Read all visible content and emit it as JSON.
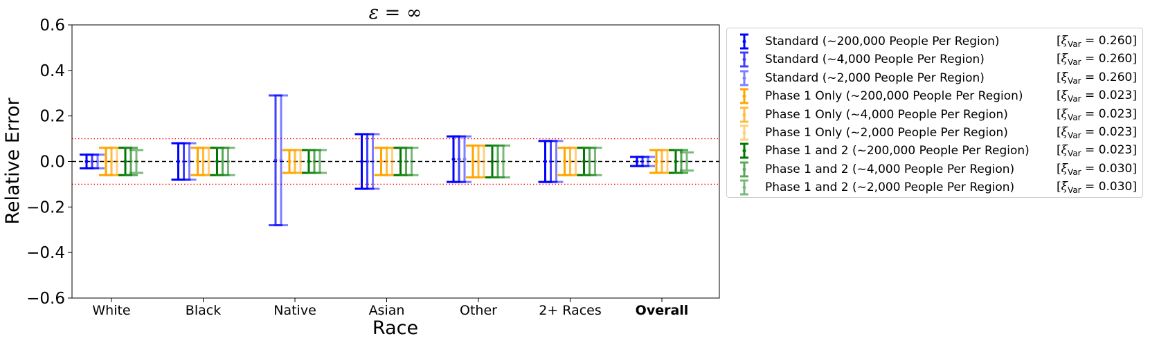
{
  "chart_data": {
    "type": "errorbar",
    "title": "ε = ∞",
    "xlabel": "Race",
    "ylabel": "Relative Error",
    "ylim": [
      -0.6,
      0.6
    ],
    "yticks": [
      -0.6,
      -0.4,
      -0.2,
      0.0,
      0.2,
      0.4,
      0.6
    ],
    "ytick_labels": [
      "−0.6",
      "−0.4",
      "−0.2",
      "0.0",
      "0.2",
      "0.4",
      "0.6"
    ],
    "categories": [
      "White",
      "Black",
      "Native",
      "Asian",
      "Other",
      "2+ Races",
      "Overall"
    ],
    "bold_categories": [
      "Overall"
    ],
    "reference_lines": [
      {
        "y": 0.0,
        "style": "dashed",
        "color": "#000000"
      },
      {
        "y": 0.1,
        "style": "dotted",
        "color": "#ff0000"
      },
      {
        "y": -0.1,
        "style": "dotted",
        "color": "#ff0000"
      }
    ],
    "series": [
      {
        "name": "Standard (~200,000 People Per Region)",
        "xi": "0.260",
        "color": "#0000ff",
        "opacity": 1.0,
        "low": [
          -0.03,
          -0.08,
          null,
          -0.12,
          -0.09,
          -0.09,
          -0.02
        ],
        "high": [
          0.03,
          0.08,
          null,
          0.12,
          0.11,
          0.09,
          0.02
        ]
      },
      {
        "name": "Standard (~4,000 People Per Region)",
        "xi": "0.260",
        "color": "#0000ff",
        "opacity": 0.75,
        "low": [
          -0.03,
          -0.08,
          -0.28,
          -0.12,
          -0.09,
          -0.09,
          -0.02
        ],
        "high": [
          0.03,
          0.08,
          0.29,
          0.12,
          0.11,
          0.09,
          0.02
        ]
      },
      {
        "name": "Standard (~2,000 People Per Region)",
        "xi": "0.260",
        "color": "#0000ff",
        "opacity": 0.5,
        "low": [
          -0.03,
          -0.08,
          -0.28,
          -0.12,
          -0.09,
          -0.09,
          -0.02
        ],
        "high": [
          0.03,
          0.08,
          0.29,
          0.12,
          0.11,
          0.09,
          0.02
        ]
      },
      {
        "name": "Phase 1 Only (~200,000 People Per Region)",
        "xi": "0.023",
        "color": "#ffa500",
        "opacity": 1.0,
        "low": [
          -0.06,
          -0.06,
          -0.05,
          -0.06,
          -0.07,
          -0.06,
          -0.05
        ],
        "high": [
          0.06,
          0.06,
          0.05,
          0.06,
          0.07,
          0.06,
          0.05
        ]
      },
      {
        "name": "Phase 1 Only (~4,000 People Per Region)",
        "xi": "0.023",
        "color": "#ffa500",
        "opacity": 0.75,
        "low": [
          -0.06,
          -0.06,
          -0.05,
          -0.06,
          -0.07,
          -0.06,
          -0.05
        ],
        "high": [
          0.06,
          0.06,
          0.05,
          0.06,
          0.07,
          0.06,
          0.05
        ]
      },
      {
        "name": "Phase 1 Only (~2,000 People Per Region)",
        "xi": "0.023",
        "color": "#ffa500",
        "opacity": 0.5,
        "low": [
          -0.06,
          -0.06,
          -0.05,
          -0.06,
          -0.07,
          -0.06,
          -0.05
        ],
        "high": [
          0.06,
          0.06,
          0.05,
          0.06,
          0.07,
          0.06,
          0.05
        ]
      },
      {
        "name": "Phase 1 and 2 (~200,000 People Per Region)",
        "xi": "0.023",
        "color": "#007700",
        "opacity": 1.0,
        "low": [
          -0.06,
          -0.06,
          -0.05,
          -0.06,
          -0.07,
          -0.06,
          -0.05
        ],
        "high": [
          0.06,
          0.06,
          0.05,
          0.06,
          0.07,
          0.06,
          0.05
        ]
      },
      {
        "name": "Phase 1 and 2 (~4,000 People Per Region)",
        "xi": "0.030",
        "color": "#228b22",
        "opacity": 0.75,
        "low": [
          -0.06,
          -0.06,
          -0.05,
          -0.06,
          -0.07,
          -0.06,
          -0.05
        ],
        "high": [
          0.06,
          0.06,
          0.05,
          0.06,
          0.07,
          0.06,
          0.05
        ]
      },
      {
        "name": "Phase 1 and 2 (~2,000 People Per Region)",
        "xi": "0.030",
        "color": "#228b22",
        "opacity": 0.6,
        "low": [
          -0.05,
          -0.06,
          -0.05,
          -0.06,
          -0.07,
          -0.06,
          -0.04
        ],
        "high": [
          0.05,
          0.06,
          0.05,
          0.06,
          0.07,
          0.06,
          0.04
        ]
      }
    ],
    "legend_position": "outside-right"
  }
}
